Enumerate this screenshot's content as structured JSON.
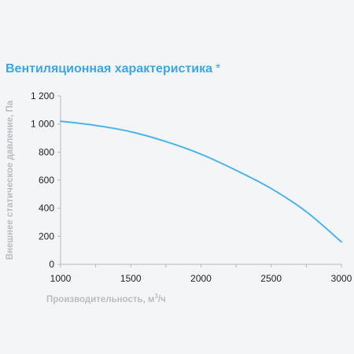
{
  "colors": {
    "accent": "#3ba6e6",
    "curve": "#4ab4e6",
    "axis": "#b5b9bd",
    "tick_text": "#222222",
    "axis_label": "#b9bcc0"
  },
  "header": {
    "title": "Вентиляционная характеристика",
    "asterisk": "*"
  },
  "chart_data": {
    "type": "line",
    "title": "Вентиляционная характеристика *",
    "xlabel": "Производительность, м",
    "xlabel_sup": "3",
    "xlabel_suffix": "/ч",
    "ylabel": "Внешнее статическое давление, Па",
    "xlim": [
      1000,
      3000
    ],
    "ylim": [
      0,
      1200
    ],
    "x_ticks": [
      1000,
      1500,
      2000,
      2500,
      3000
    ],
    "x_tick_labels": [
      "1000",
      "1500",
      "2000",
      "2500",
      "3000"
    ],
    "x_minor_step": 250,
    "y_ticks": [
      0,
      200,
      400,
      600,
      800,
      1000,
      1200
    ],
    "y_tick_labels": [
      "0",
      "200",
      "400",
      "600",
      "800",
      "1 000",
      "1 200"
    ],
    "grid": false,
    "series": [
      {
        "x": [
          1000,
          1250,
          1500,
          1750,
          2000,
          2250,
          2500,
          2750,
          3000
        ],
        "y": [
          1020,
          990,
          945,
          875,
          785,
          670,
          540,
          375,
          160
        ]
      }
    ]
  }
}
